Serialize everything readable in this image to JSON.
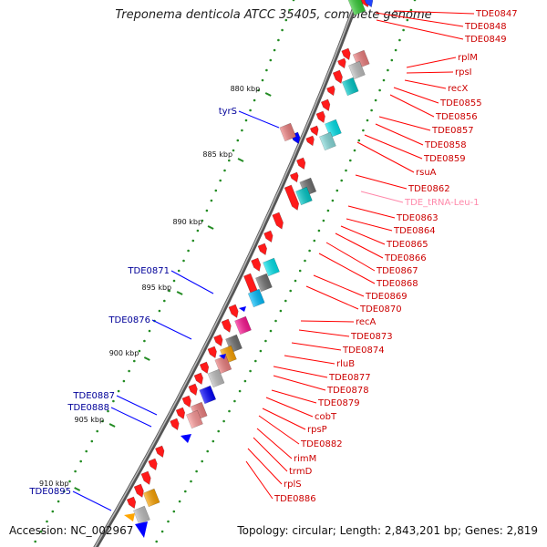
{
  "title": "Treponema denticola ATCC 35405, complete genome",
  "footer": {
    "accession": "Accession: NC_002967",
    "topology": "Topology: circular; Length: 2,843,201 bp; Genes: 2,819"
  },
  "colors": {
    "forward_gene": "#ff0000",
    "reverse_gene": "#0000ff",
    "right_label": "#cc0000",
    "left_label": "#000099",
    "trna_label": "#ff88aa",
    "dots": "#228b22",
    "backbone": "#777777"
  },
  "kbp_labels": [
    "880 kbp",
    "885 kbp",
    "890 kbp",
    "895 kbp",
    "900 kbp",
    "905 kbp",
    "910 kbp"
  ],
  "left_labels": [
    "tyrS",
    "TDE0871",
    "TDE0876",
    "TDE0887",
    "TDE0888",
    "TDE0895"
  ],
  "right_labels": [
    "TDE0847",
    "TDE0848",
    "TDE0849",
    "rplM",
    "rpsI",
    "recX",
    "TDE0855",
    "TDE0856",
    "TDE0857",
    "TDE0858",
    "TDE0859",
    "rsuA",
    "TDE0862",
    "TDE_tRNA-Leu-1",
    "TDE0863",
    "TDE0864",
    "TDE0865",
    "TDE0866",
    "TDE0867",
    "TDE0868",
    "TDE0869",
    "TDE0870",
    "recA",
    "TDE0873",
    "TDE0874",
    "rluB",
    "TDE0877",
    "TDE0878",
    "TDE0879",
    "cobT",
    "rpsP",
    "TDE0882",
    "rimM",
    "trmD",
    "rplS",
    "TDE0886"
  ]
}
